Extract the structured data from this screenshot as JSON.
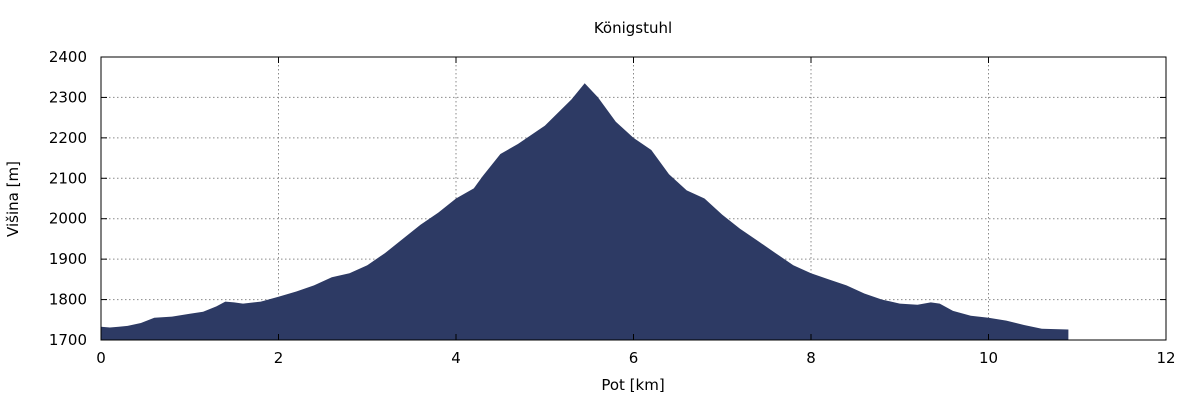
{
  "chart_data": {
    "type": "area",
    "title": "Königstuhl",
    "xlabel": "Pot [km]",
    "ylabel": "Višina [m]",
    "xlim": [
      0,
      12
    ],
    "ylim": [
      1700,
      2400
    ],
    "xticks": [
      0,
      2,
      4,
      6,
      8,
      10,
      12
    ],
    "yticks": [
      1700,
      1800,
      1900,
      2000,
      2100,
      2200,
      2300,
      2400
    ],
    "grid": true,
    "legend": "none",
    "fill_color": "#2d3a64",
    "series": [
      {
        "x": [
          0,
          0.1,
          0.2,
          0.3,
          0.45,
          0.6,
          0.8,
          1.0,
          1.15,
          1.3,
          1.4,
          1.5,
          1.6,
          1.8,
          2.0,
          2.2,
          2.4,
          2.6,
          2.8,
          3.0,
          3.2,
          3.4,
          3.6,
          3.8,
          4.0,
          4.2,
          4.3,
          4.5,
          4.7,
          5.0,
          5.3,
          5.45,
          5.6,
          5.8,
          6.0,
          6.2,
          6.4,
          6.6,
          6.8,
          7.0,
          7.2,
          7.4,
          7.6,
          7.8,
          8.0,
          8.2,
          8.4,
          8.6,
          8.8,
          9.0,
          9.2,
          9.35,
          9.45,
          9.6,
          9.8,
          10.0,
          10.2,
          10.4,
          10.6,
          10.9
        ],
        "y": [
          1733,
          1731,
          1733,
          1735,
          1742,
          1755,
          1758,
          1765,
          1770,
          1783,
          1795,
          1793,
          1790,
          1795,
          1807,
          1820,
          1835,
          1855,
          1865,
          1885,
          1915,
          1950,
          1985,
          2015,
          2050,
          2075,
          2105,
          2160,
          2185,
          2230,
          2295,
          2335,
          2300,
          2240,
          2200,
          2170,
          2110,
          2070,
          2050,
          2010,
          1975,
          1945,
          1915,
          1885,
          1865,
          1850,
          1835,
          1815,
          1800,
          1790,
          1787,
          1793,
          1790,
          1772,
          1760,
          1755,
          1748,
          1737,
          1728,
          1726
        ]
      }
    ]
  }
}
